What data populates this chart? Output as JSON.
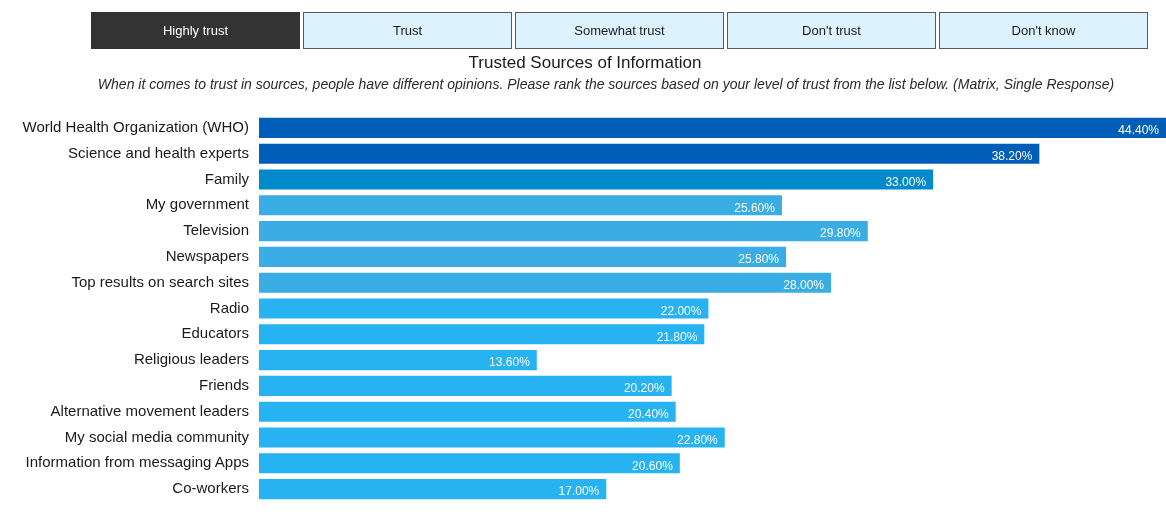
{
  "chart_data": {
    "type": "bar",
    "orientation": "horizontal",
    "title": "Trusted Sources of Information",
    "subtitle": "When it comes to trust in sources, people have different opinions. Please rank the sources based on your level of trust from the list below. (Matrix, Single Response)",
    "categories": [
      "World Health Organization (WHO)",
      "Science and health experts",
      "Family",
      "My government",
      "Television",
      "Newspapers",
      "Top results on search sites",
      "Radio",
      "Educators",
      "Religious leaders",
      "Friends",
      "Alternative movement leaders",
      "My social media community",
      "Information from messaging Apps",
      "Co-workers"
    ],
    "values": [
      44.4,
      38.2,
      33.0,
      25.6,
      29.8,
      25.8,
      28.0,
      22.0,
      21.8,
      13.6,
      20.2,
      20.4,
      22.8,
      20.6,
      17.0
    ],
    "colors": [
      "#005eb8",
      "#005eb8",
      "#008acb",
      "#3aade4",
      "#3aade4",
      "#3aade4",
      "#3aade4",
      "#27b2f2",
      "#27b2f2",
      "#27b2f2",
      "#27b2f2",
      "#27b2f2",
      "#27b2f2",
      "#27b2f2",
      "#27b2f2"
    ],
    "value_labels": [
      "44.40%",
      "38.20%",
      "33.00%",
      "25.60%",
      "29.80%",
      "25.80%",
      "28.00%",
      "22.00%",
      "21.80%",
      "13.60%",
      "20.20%",
      "20.40%",
      "22.80%",
      "20.60%",
      "17.00%"
    ],
    "xlim": [
      0,
      44.4
    ],
    "tick_labels": "y",
    "annotations": [
      "Highly trust",
      "Trust",
      "Somewhat trust",
      "Don't trust",
      "Don't know"
    ]
  }
}
